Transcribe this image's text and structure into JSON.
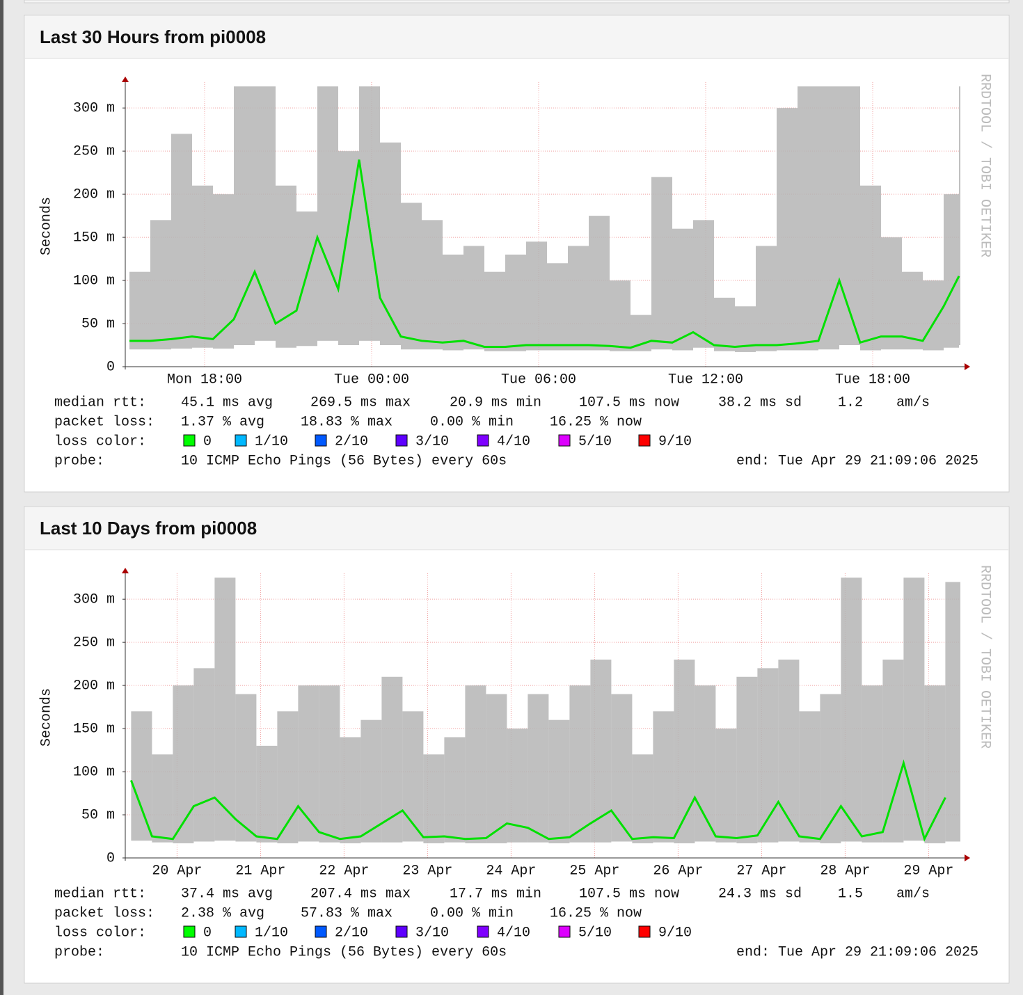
{
  "chart_data": [
    {
      "type": "smoke",
      "title": "Last 30 Hours from pi0008",
      "ylabel": "Seconds",
      "watermark": "RRDTOOL / TOBI OETIKER",
      "xlim": [
        15.15,
        45.15
      ],
      "ylim": [
        0,
        0.33
      ],
      "yticks": [
        {
          "value": 0,
          "label": "0"
        },
        {
          "value": 0.05,
          "label": "50 m"
        },
        {
          "value": 0.1,
          "label": "100 m"
        },
        {
          "value": 0.15,
          "label": "150 m"
        },
        {
          "value": 0.2,
          "label": "200 m"
        },
        {
          "value": 0.25,
          "label": "250 m"
        },
        {
          "value": 0.3,
          "label": "300 m"
        }
      ],
      "xticks": [
        {
          "value": 18,
          "label": "Mon 18:00"
        },
        {
          "value": 24,
          "label": "Tue 00:00"
        },
        {
          "value": 30,
          "label": "Tue 06:00"
        },
        {
          "value": 36,
          "label": "Tue 12:00"
        },
        {
          "value": 42,
          "label": "Tue 18:00"
        }
      ],
      "x": [
        15.3,
        16.05,
        16.8,
        17.55,
        18.3,
        19.05,
        19.8,
        20.55,
        21.3,
        22.05,
        22.8,
        23.55,
        24.3,
        25.05,
        25.8,
        26.55,
        27.3,
        28.05,
        28.8,
        29.55,
        30.3,
        31.05,
        31.8,
        32.55,
        33.3,
        34.05,
        34.8,
        35.55,
        36.3,
        37.05,
        37.8,
        38.55,
        39.3,
        40.05,
        40.8,
        41.55,
        42.3,
        43.05,
        43.8,
        44.55,
        45.1
      ],
      "median": [
        0.03,
        0.03,
        0.032,
        0.035,
        0.032,
        0.055,
        0.11,
        0.05,
        0.065,
        0.15,
        0.09,
        0.24,
        0.08,
        0.035,
        0.03,
        0.028,
        0.03,
        0.023,
        0.023,
        0.025,
        0.025,
        0.025,
        0.025,
        0.024,
        0.022,
        0.03,
        0.028,
        0.04,
        0.025,
        0.023,
        0.025,
        0.025,
        0.027,
        0.03,
        0.1,
        0.028,
        0.035,
        0.035,
        0.03,
        0.07,
        0.105
      ],
      "smoke_max": [
        0.11,
        0.17,
        0.27,
        0.21,
        0.2,
        0.325,
        0.325,
        0.21,
        0.18,
        0.325,
        0.25,
        0.325,
        0.26,
        0.19,
        0.17,
        0.13,
        0.14,
        0.11,
        0.13,
        0.145,
        0.12,
        0.14,
        0.175,
        0.1,
        0.06,
        0.22,
        0.16,
        0.17,
        0.08,
        0.07,
        0.14,
        0.3,
        0.325,
        0.325,
        0.325,
        0.21,
        0.15,
        0.11,
        0.1,
        0.2,
        0.325
      ],
      "smoke_min": [
        0.02,
        0.02,
        0.021,
        0.022,
        0.021,
        0.025,
        0.03,
        0.022,
        0.024,
        0.03,
        0.025,
        0.03,
        0.025,
        0.02,
        0.02,
        0.019,
        0.02,
        0.018,
        0.018,
        0.019,
        0.019,
        0.019,
        0.019,
        0.018,
        0.018,
        0.02,
        0.019,
        0.022,
        0.018,
        0.017,
        0.018,
        0.019,
        0.019,
        0.02,
        0.025,
        0.019,
        0.02,
        0.02,
        0.019,
        0.022,
        0.025
      ],
      "legend": {
        "stats": [
          {
            "label": "median rtt:",
            "items": [
              "45.1 ms avg",
              "269.5 ms max",
              "20.9 ms min",
              "107.5 ms now",
              "38.2 ms sd",
              "1.2",
              "am/s"
            ]
          },
          {
            "label": "packet loss:",
            "items": [
              "1.37 % avg",
              "18.83 % max",
              "0.00 % min",
              "16.25 % now"
            ]
          }
        ],
        "loss": {
          "label": "loss color:",
          "entries": [
            {
              "label": "0",
              "color": "#00ff00"
            },
            {
              "label": "1/10",
              "color": "#00b8ff"
            },
            {
              "label": "2/10",
              "color": "#0059ff"
            },
            {
              "label": "3/10",
              "color": "#5e00ff"
            },
            {
              "label": "4/10",
              "color": "#7e00ff"
            },
            {
              "label": "5/10",
              "color": "#dd00ff"
            },
            {
              "label": "9/10",
              "color": "#ff0000"
            }
          ]
        },
        "probe": {
          "label": "probe:",
          "text": "10 ICMP Echo Pings (56 Bytes) every 60s"
        },
        "end": "end: Tue Apr 29 21:09:06 2025"
      }
    },
    {
      "type": "smoke",
      "title": "Last 10 Days from pi0008",
      "ylabel": "Seconds",
      "watermark": "RRDTOOL / TOBI OETIKER",
      "xlim": [
        19.88,
        29.88
      ],
      "ylim": [
        0,
        0.33
      ],
      "yticks": [
        {
          "value": 0,
          "label": "0"
        },
        {
          "value": 0.05,
          "label": "50 m"
        },
        {
          "value": 0.1,
          "label": "100 m"
        },
        {
          "value": 0.15,
          "label": "150 m"
        },
        {
          "value": 0.2,
          "label": "200 m"
        },
        {
          "value": 0.25,
          "label": "250 m"
        },
        {
          "value": 0.3,
          "label": "300 m"
        }
      ],
      "xticks": [
        {
          "value": 20.5,
          "label": "20 Apr"
        },
        {
          "value": 21.5,
          "label": "21 Apr"
        },
        {
          "value": 22.5,
          "label": "22 Apr"
        },
        {
          "value": 23.5,
          "label": "23 Apr"
        },
        {
          "value": 24.5,
          "label": "24 Apr"
        },
        {
          "value": 25.5,
          "label": "25 Apr"
        },
        {
          "value": 26.5,
          "label": "26 Apr"
        },
        {
          "value": 27.5,
          "label": "27 Apr"
        },
        {
          "value": 28.5,
          "label": "28 Apr"
        },
        {
          "value": 29.5,
          "label": "29 Apr"
        }
      ],
      "x": [
        19.95,
        20.2,
        20.45,
        20.7,
        20.95,
        21.2,
        21.45,
        21.7,
        21.95,
        22.2,
        22.45,
        22.7,
        22.95,
        23.2,
        23.45,
        23.7,
        23.95,
        24.2,
        24.45,
        24.7,
        24.95,
        25.2,
        25.45,
        25.7,
        25.95,
        26.2,
        26.45,
        26.7,
        26.95,
        27.2,
        27.45,
        27.7,
        27.95,
        28.2,
        28.45,
        28.7,
        28.95,
        29.2,
        29.45,
        29.7
      ],
      "median": [
        0.09,
        0.025,
        0.022,
        0.06,
        0.07,
        0.045,
        0.025,
        0.022,
        0.06,
        0.03,
        0.022,
        0.025,
        0.04,
        0.055,
        0.024,
        0.025,
        0.022,
        0.023,
        0.04,
        0.035,
        0.022,
        0.024,
        0.04,
        0.055,
        0.022,
        0.024,
        0.023,
        0.07,
        0.025,
        0.023,
        0.026,
        0.065,
        0.025,
        0.022,
        0.06,
        0.025,
        0.03,
        0.11,
        0.022,
        0.07
      ],
      "smoke_max": [
        0.17,
        0.12,
        0.2,
        0.22,
        0.325,
        0.19,
        0.13,
        0.17,
        0.2,
        0.2,
        0.14,
        0.16,
        0.21,
        0.17,
        0.12,
        0.14,
        0.2,
        0.19,
        0.15,
        0.19,
        0.16,
        0.2,
        0.23,
        0.19,
        0.12,
        0.17,
        0.23,
        0.2,
        0.15,
        0.21,
        0.22,
        0.23,
        0.17,
        0.19,
        0.325,
        0.2,
        0.23,
        0.325,
        0.2,
        0.32
      ],
      "smoke_min": [
        0.02,
        0.018,
        0.017,
        0.019,
        0.02,
        0.019,
        0.018,
        0.017,
        0.019,
        0.018,
        0.017,
        0.018,
        0.018,
        0.019,
        0.017,
        0.018,
        0.017,
        0.017,
        0.018,
        0.018,
        0.017,
        0.018,
        0.018,
        0.019,
        0.017,
        0.018,
        0.017,
        0.019,
        0.018,
        0.017,
        0.018,
        0.019,
        0.018,
        0.017,
        0.019,
        0.018,
        0.018,
        0.02,
        0.017,
        0.019
      ],
      "legend": {
        "stats": [
          {
            "label": "median rtt:",
            "items": [
              "37.4 ms avg",
              "207.4 ms max",
              "17.7 ms min",
              "107.5 ms now",
              "24.3 ms sd",
              "1.5",
              "am/s"
            ]
          },
          {
            "label": "packet loss:",
            "items": [
              "2.38 % avg",
              "57.83 % max",
              "0.00 % min",
              "16.25 % now"
            ]
          }
        ],
        "loss": {
          "label": "loss color:",
          "entries": [
            {
              "label": "0",
              "color": "#00ff00"
            },
            {
              "label": "1/10",
              "color": "#00b8ff"
            },
            {
              "label": "2/10",
              "color": "#0059ff"
            },
            {
              "label": "3/10",
              "color": "#5e00ff"
            },
            {
              "label": "4/10",
              "color": "#7e00ff"
            },
            {
              "label": "5/10",
              "color": "#dd00ff"
            },
            {
              "label": "9/10",
              "color": "#ff0000"
            }
          ]
        },
        "probe": {
          "label": "probe:",
          "text": "10 ICMP Echo Pings (56 Bytes) every 60s"
        },
        "end": "end: Tue Apr 29 21:09:06 2025"
      }
    }
  ]
}
